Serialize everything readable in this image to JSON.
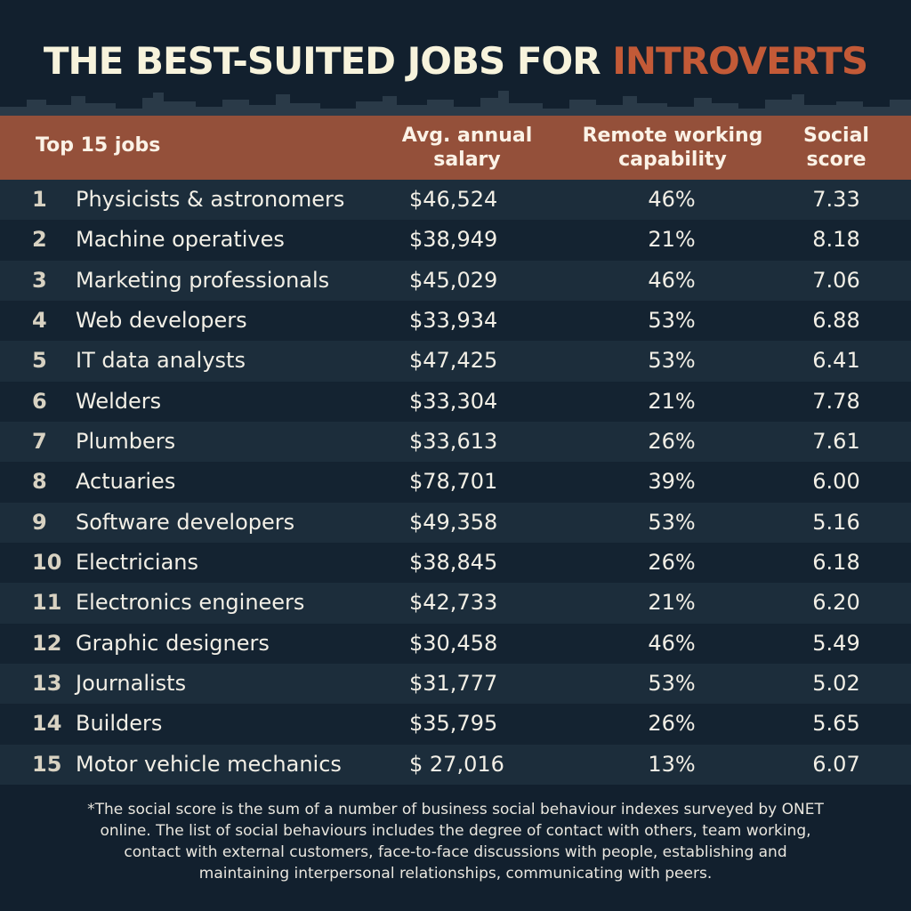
{
  "title": {
    "main": "THE BEST-SUITED JOBS FOR",
    "accent": "INTROVERTS"
  },
  "colors": {
    "background": "#12202e",
    "header_band": "#94503a",
    "accent": "#c35a37",
    "row_light": "#1c2d3b",
    "row_dark": "#142331"
  },
  "chart_data": {
    "type": "table",
    "columns": [
      "Top 15 jobs",
      "Avg. annual salary",
      "Remote working capability",
      "Social score"
    ],
    "header": {
      "jobs": "Top 15 jobs",
      "salary_l1": "Avg. annual",
      "salary_l2": "salary",
      "remote_l1": "Remote working",
      "remote_l2": "capability",
      "social_l1": "Social",
      "social_l2": "score"
    },
    "rows": [
      {
        "rank": "1",
        "job": "Physicists & astronomers",
        "salary": "$46,524",
        "remote": "46%",
        "social": "7.33"
      },
      {
        "rank": "2",
        "job": "Machine operatives",
        "salary": "$38,949",
        "remote": "21%",
        "social": "8.18"
      },
      {
        "rank": "3",
        "job": "Marketing professionals",
        "salary": "$45,029",
        "remote": "46%",
        "social": "7.06"
      },
      {
        "rank": "4",
        "job": "Web developers",
        "salary": "$33,934",
        "remote": "53%",
        "social": "6.88"
      },
      {
        "rank": "5",
        "job": "IT data analysts",
        "salary": "$47,425",
        "remote": "53%",
        "social": "6.41"
      },
      {
        "rank": "6",
        "job": "Welders",
        "salary": "$33,304",
        "remote": "21%",
        "social": "7.78"
      },
      {
        "rank": "7",
        "job": "Plumbers",
        "salary": "$33,613",
        "remote": "26%",
        "social": "7.61"
      },
      {
        "rank": "8",
        "job": "Actuaries",
        "salary": "$78,701",
        "remote": "39%",
        "social": "6.00"
      },
      {
        "rank": "9",
        "job": "Software developers",
        "salary": "$49,358",
        "remote": "53%",
        "social": "5.16"
      },
      {
        "rank": "10",
        "job": "Electricians",
        "salary": "$38,845",
        "remote": "26%",
        "social": "6.18"
      },
      {
        "rank": "11",
        "job": "Electronics engineers",
        "salary": "$42,733",
        "remote": "21%",
        "social": "6.20"
      },
      {
        "rank": "12",
        "job": "Graphic designers",
        "salary": "$30,458",
        "remote": "46%",
        "social": "5.49"
      },
      {
        "rank": "13",
        "job": "Journalists",
        "salary": "$31,777",
        "remote": "53%",
        "social": "5.02"
      },
      {
        "rank": "14",
        "job": "Builders",
        "salary": "$35,795",
        "remote": "26%",
        "social": "5.65"
      },
      {
        "rank": "15",
        "job": "Motor vehicle mechanics",
        "salary": "$ 27,016",
        "remote": "13%",
        "social": "6.07"
      }
    ]
  },
  "footnote": {
    "line1": "*The social score is the sum of a number of business social behaviour indexes surveyed by ONET",
    "line2": "online. The list of social behaviours includes the degree of contact with others, team working,",
    "line3": "contact with external customers, face-to-face discussions with people, establishing and",
    "line4": "maintaining interpersonal relationships, communicating with peers."
  }
}
